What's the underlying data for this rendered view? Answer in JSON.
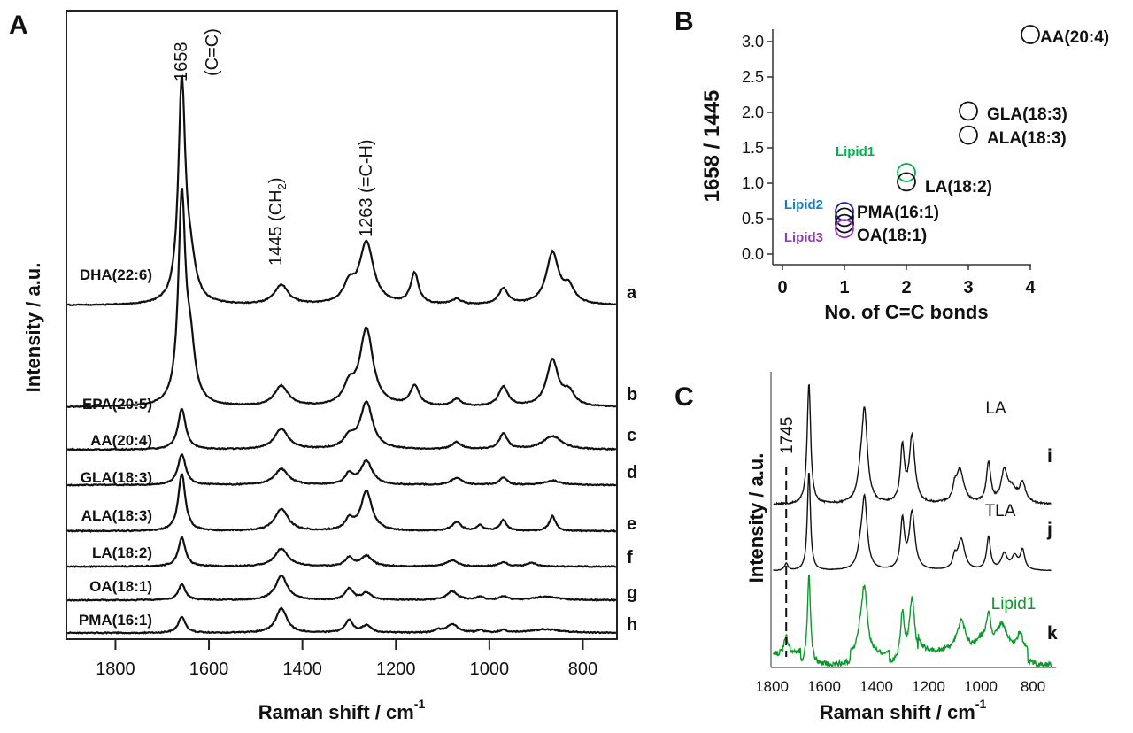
{
  "panel_labels": {
    "a": "A",
    "b": "B",
    "c": "C"
  },
  "chart_data": [
    {
      "type": "line",
      "panel": "A",
      "xlabel": "Raman shift / cm",
      "xlabel_sup": "-1",
      "ylabel": "Intensity / a.u.",
      "xlim": [
        1905,
        727
      ],
      "ylim": [
        0,
        710
      ],
      "xticks": [
        1800,
        1600,
        1400,
        1200,
        1000,
        800
      ],
      "annotations": [
        "1658",
        "(C=C)",
        "1445 (CH",
        "2",
        ")",
        "1263 (=C-H)"
      ],
      "series": [
        {
          "name": "DHA(22:6)",
          "letter": "a",
          "offset": 377,
          "peaks": [
            [
              1658,
              245,
              9
            ],
            [
              1640,
              40,
              14
            ],
            [
              1445,
              22,
              18
            ],
            [
              1300,
              20,
              14
            ],
            [
              1263,
              70,
              18
            ],
            [
              1160,
              35,
              10
            ],
            [
              1070,
              6,
              12
            ],
            [
              970,
              18,
              12
            ],
            [
              865,
              58,
              16
            ],
            [
              830,
              18,
              14
            ]
          ]
        },
        {
          "name": "EPA(20:5)",
          "letter": "b",
          "offset": 262,
          "peaks": [
            [
              1658,
              230,
              9
            ],
            [
              1640,
              60,
              12
            ],
            [
              1445,
              23,
              18
            ],
            [
              1300,
              20,
              14
            ],
            [
              1263,
              87,
              17
            ],
            [
              1160,
              23,
              11
            ],
            [
              1070,
              8,
              12
            ],
            [
              970,
              22,
              12
            ],
            [
              865,
              52,
              15
            ],
            [
              830,
              15,
              14
            ]
          ]
        },
        {
          "name": "AA(20:4)",
          "letter": "c",
          "offset": 214,
          "peaks": [
            [
              1658,
              46,
              10
            ],
            [
              1445,
              23,
              18
            ],
            [
              1300,
              12,
              14
            ],
            [
              1263,
              53,
              16
            ],
            [
              1070,
              8,
              12
            ],
            [
              970,
              18,
              10
            ],
            [
              865,
              15,
              25
            ]
          ]
        },
        {
          "name": "GLA(18:3)",
          "letter": "d",
          "offset": 174,
          "peaks": [
            [
              1658,
              35,
              10
            ],
            [
              1445,
              18,
              18
            ],
            [
              1300,
              12,
              10
            ],
            [
              1263,
              27,
              15
            ],
            [
              1070,
              8,
              14
            ],
            [
              970,
              8,
              10
            ],
            [
              865,
              5,
              20
            ]
          ]
        },
        {
          "name": "ALA(18:3)",
          "letter": "e",
          "offset": 122,
          "peaks": [
            [
              1658,
              65,
              9
            ],
            [
              1445,
              25,
              17
            ],
            [
              1300,
              12,
              10
            ],
            [
              1263,
              45,
              14
            ],
            [
              1070,
              10,
              12
            ],
            [
              1020,
              6,
              8
            ],
            [
              970,
              12,
              9
            ],
            [
              865,
              17,
              8
            ]
          ]
        },
        {
          "name": "LA(18:2)",
          "letter": "f",
          "offset": 82,
          "peaks": [
            [
              1658,
              33,
              9
            ],
            [
              1445,
              20,
              17
            ],
            [
              1300,
              10,
              10
            ],
            [
              1263,
              12,
              14
            ],
            [
              1080,
              7,
              14
            ],
            [
              970,
              5,
              10
            ],
            [
              910,
              4,
              12
            ]
          ]
        },
        {
          "name": "OA(18:1)",
          "letter": "g",
          "offset": 44,
          "peaks": [
            [
              1658,
              18,
              9
            ],
            [
              1445,
              28,
              15
            ],
            [
              1300,
              13,
              10
            ],
            [
              1263,
              8,
              12
            ],
            [
              1080,
              10,
              14
            ],
            [
              1020,
              4,
              8
            ],
            [
              970,
              4,
              10
            ],
            [
              880,
              4,
              30
            ]
          ]
        },
        {
          "name": "PMA(16:1)",
          "letter": "h",
          "offset": 7,
          "peaks": [
            [
              1658,
              18,
              9
            ],
            [
              1445,
              28,
              14
            ],
            [
              1300,
              14,
              10
            ],
            [
              1263,
              8,
              12
            ],
            [
              1110,
              3,
              8
            ],
            [
              1080,
              10,
              14
            ],
            [
              1020,
              3,
              8
            ],
            [
              970,
              3,
              8
            ],
            [
              880,
              4,
              40
            ]
          ]
        }
      ]
    },
    {
      "type": "scatter",
      "panel": "B",
      "xlabel": "No. of C=C bonds",
      "ylabel": "1658 / 1445",
      "xlim": [
        0,
        4
      ],
      "ylim": [
        0,
        3.1
      ],
      "xticks": [
        "0",
        "1",
        "2",
        "3",
        "4"
      ],
      "yticks": [
        "0.0",
        "0.5",
        "1.0",
        "1.5",
        "2.0",
        "2.5",
        "3.0"
      ],
      "points": [
        {
          "label": "AA(20:4)",
          "x": 4,
          "y": 3.1,
          "color": "#111111"
        },
        {
          "label": "GLA(18:3)",
          "x": 3,
          "y": 2.02,
          "color": "#111111"
        },
        {
          "label": "ALA(18:3)",
          "x": 3,
          "y": 1.68,
          "color": "#111111"
        },
        {
          "label": "Lipid1",
          "x": 2,
          "y": 1.15,
          "color": "#00b050"
        },
        {
          "label": "LA(18:2)",
          "x": 2,
          "y": 1.02,
          "color": "#111111"
        },
        {
          "label": "Lipid2",
          "x": 1,
          "y": 0.6,
          "color": "#1f1fbf"
        },
        {
          "label": "PMA(16:1)",
          "x": 1,
          "y": 0.52,
          "color": "#111111"
        },
        {
          "label": "OA(18:1)",
          "x": 1,
          "y": 0.43,
          "color": "#111111"
        },
        {
          "label": "Lipid3",
          "x": 1,
          "y": 0.36,
          "color": "#9b30c0"
        }
      ],
      "label_colors": {
        "Lipid1": "#00b050",
        "Lipid2": "#1a7fc4",
        "Lipid3": "#8e3fb0"
      }
    },
    {
      "type": "line",
      "panel": "C",
      "xlabel": "Raman shift / cm",
      "xlabel_sup": "-1",
      "ylabel": "Intensity / a.u.",
      "xlim": [
        1800,
        730
      ],
      "ylim": [
        0,
        334
      ],
      "xticks": [
        1800,
        1600,
        1400,
        1200,
        1000,
        800
      ],
      "marker_line": {
        "x": 1745,
        "label": "1745"
      },
      "series": [
        {
          "name": "LA",
          "letter": "i",
          "color": "#111111",
          "offset": 184,
          "noise": 2,
          "peaks": [
            [
              1658,
              137,
              8
            ],
            [
              1445,
              100,
              13
            ],
            [
              1460,
              20,
              14
            ],
            [
              1300,
              62,
              9
            ],
            [
              1263,
              75,
              13
            ],
            [
              1080,
              38,
              18
            ],
            [
              1100,
              12,
              8
            ],
            [
              970,
              45,
              10
            ],
            [
              910,
              35,
              14
            ],
            [
              840,
              22,
              14
            ],
            [
              880,
              15,
              20
            ]
          ]
        },
        {
          "name": "TLA",
          "letter": "j",
          "color": "#111111",
          "offset": 109,
          "noise": 0.5,
          "peaks": [
            [
              1745,
              8,
              8
            ],
            [
              1658,
              112,
              7
            ],
            [
              1445,
              77,
              12
            ],
            [
              1460,
              18,
              14
            ],
            [
              1300,
              55,
              9
            ],
            [
              1263,
              65,
              13
            ],
            [
              1075,
              35,
              16
            ],
            [
              1100,
              12,
              8
            ],
            [
              970,
              37,
              9
            ],
            [
              910,
              18,
              14
            ],
            [
              870,
              15,
              14
            ],
            [
              840,
              22,
              10
            ]
          ]
        },
        {
          "name": "Lipid1",
          "letter": "k",
          "color": "#0a9a2a",
          "offset": 2,
          "noise": 6,
          "peaks": [
            [
              1745,
              20,
              10
            ],
            [
              1658,
              103,
              7
            ],
            [
              1445,
              70,
              13
            ],
            [
              1460,
              20,
              14
            ],
            [
              1300,
              55,
              9
            ],
            [
              1263,
              73,
              13
            ],
            [
              1075,
              35,
              20
            ],
            [
              970,
              38,
              10
            ],
            [
              920,
              30,
              25
            ],
            [
              850,
              20,
              14
            ],
            [
              1000,
              12,
              20
            ]
          ]
        }
      ]
    }
  ]
}
